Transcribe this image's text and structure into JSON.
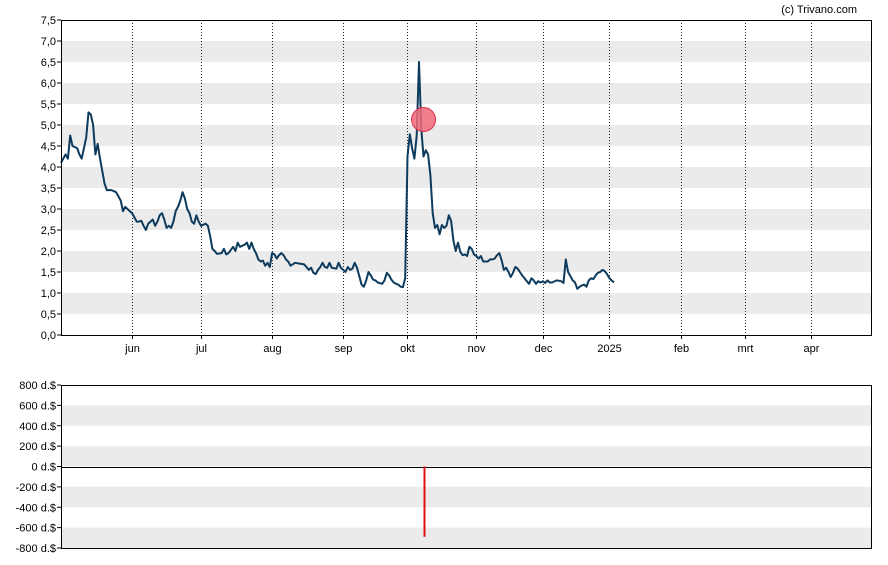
{
  "credit": "(c) Trivano.com",
  "colors": {
    "line": "#0d3b5e",
    "band": "#ebebeb",
    "marker_fill": "#f06a78",
    "marker_stroke": "#d8304a",
    "volume_bar": "#dd1111",
    "axis": "#000000"
  },
  "chart_data": [
    {
      "type": "line",
      "name": "price",
      "ylim": [
        0,
        7.5
      ],
      "yticks": [
        "0,0",
        "0,5",
        "1,0",
        "1,5",
        "2,0",
        "2,5",
        "3,0",
        "3,5",
        "4,0",
        "4,5",
        "5,0",
        "5,5",
        "6,0",
        "6,5",
        "7,0",
        "7,5"
      ],
      "grid": "alternating horizontal bands, dotted vertical month lines",
      "x_domain": [
        0,
        353
      ],
      "months": [
        {
          "label": "jun",
          "x": 31
        },
        {
          "label": "jul",
          "x": 61
        },
        {
          "label": "aug",
          "x": 92
        },
        {
          "label": "sep",
          "x": 123
        },
        {
          "label": "okt",
          "x": 151
        },
        {
          "label": "nov",
          "x": 181
        },
        {
          "label": "dec",
          "x": 210
        },
        {
          "label": "2025",
          "x": 239
        },
        {
          "label": "feb",
          "x": 270
        },
        {
          "label": "mrt",
          "x": 298
        },
        {
          "label": "apr",
          "x": 327
        }
      ],
      "series": [
        {
          "points": [
            [
              0,
              4.1
            ],
            [
              2,
              4.3
            ],
            [
              3,
              4.2
            ],
            [
              4,
              4.75
            ],
            [
              5,
              4.5
            ],
            [
              7,
              4.45
            ],
            [
              8,
              4.3
            ],
            [
              9,
              4.2
            ],
            [
              11,
              4.7
            ],
            [
              12,
              5.3
            ],
            [
              13,
              5.25
            ],
            [
              14,
              5.0
            ],
            [
              15,
              4.3
            ],
            [
              16,
              4.55
            ],
            [
              17,
              4.2
            ],
            [
              18,
              3.9
            ],
            [
              19,
              3.6
            ],
            [
              20,
              3.45
            ],
            [
              22,
              3.45
            ],
            [
              24,
              3.4
            ],
            [
              25,
              3.3
            ],
            [
              26,
              3.2
            ],
            [
              27,
              2.95
            ],
            [
              28,
              3.05
            ],
            [
              30,
              2.95
            ],
            [
              31,
              2.9
            ],
            [
              32,
              2.8
            ],
            [
              33,
              2.7
            ],
            [
              34,
              2.7
            ],
            [
              35,
              2.72
            ],
            [
              36,
              2.6
            ],
            [
              37,
              2.5
            ],
            [
              38,
              2.65
            ],
            [
              40,
              2.75
            ],
            [
              41,
              2.6
            ],
            [
              42,
              2.7
            ],
            [
              43,
              2.85
            ],
            [
              44,
              2.9
            ],
            [
              45,
              2.75
            ],
            [
              46,
              2.55
            ],
            [
              47,
              2.6
            ],
            [
              48,
              2.55
            ],
            [
              49,
              2.7
            ],
            [
              50,
              2.95
            ],
            [
              51,
              3.05
            ],
            [
              52,
              3.2
            ],
            [
              53,
              3.4
            ],
            [
              54,
              3.25
            ],
            [
              55,
              3.0
            ],
            [
              56,
              2.9
            ],
            [
              57,
              2.7
            ],
            [
              58,
              2.65
            ],
            [
              59,
              2.85
            ],
            [
              60,
              2.7
            ],
            [
              61,
              2.6
            ],
            [
              63,
              2.65
            ],
            [
              64,
              2.6
            ],
            [
              65,
              2.35
            ],
            [
              66,
              2.05
            ],
            [
              67,
              2.0
            ],
            [
              68,
              1.93
            ],
            [
              70,
              1.95
            ],
            [
              71,
              2.05
            ],
            [
              72,
              1.92
            ],
            [
              73,
              1.95
            ],
            [
              75,
              2.1
            ],
            [
              76,
              2.0
            ],
            [
              77,
              2.2
            ],
            [
              78,
              2.1
            ],
            [
              80,
              2.15
            ],
            [
              81,
              2.2
            ],
            [
              82,
              2.05
            ],
            [
              83,
              2.2
            ],
            [
              84,
              2.05
            ],
            [
              85,
              1.95
            ],
            [
              86,
              1.8
            ],
            [
              87,
              1.75
            ],
            [
              88,
              1.77
            ],
            [
              89,
              1.65
            ],
            [
              90,
              1.72
            ],
            [
              91,
              1.62
            ],
            [
              92,
              1.95
            ],
            [
              93,
              1.92
            ],
            [
              94,
              1.82
            ],
            [
              95,
              1.9
            ],
            [
              96,
              1.95
            ],
            [
              97,
              1.9
            ],
            [
              98,
              1.8
            ],
            [
              99,
              1.75
            ],
            [
              100,
              1.65
            ],
            [
              102,
              1.72
            ],
            [
              104,
              1.7
            ],
            [
              106,
              1.68
            ],
            [
              107,
              1.62
            ],
            [
              108,
              1.55
            ],
            [
              109,
              1.6
            ],
            [
              110,
              1.48
            ],
            [
              111,
              1.45
            ],
            [
              112,
              1.55
            ],
            [
              113,
              1.62
            ],
            [
              114,
              1.72
            ],
            [
              115,
              1.62
            ],
            [
              116,
              1.6
            ],
            [
              117,
              1.72
            ],
            [
              118,
              1.6
            ],
            [
              120,
              1.58
            ],
            [
              121,
              1.72
            ],
            [
              122,
              1.6
            ],
            [
              123,
              1.55
            ],
            [
              124,
              1.5
            ],
            [
              125,
              1.62
            ],
            [
              126,
              1.55
            ],
            [
              127,
              1.58
            ],
            [
              128,
              1.72
            ],
            [
              129,
              1.6
            ],
            [
              130,
              1.4
            ],
            [
              131,
              1.2
            ],
            [
              132,
              1.15
            ],
            [
              133,
              1.3
            ],
            [
              134,
              1.5
            ],
            [
              135,
              1.42
            ],
            [
              136,
              1.32
            ],
            [
              137,
              1.3
            ],
            [
              138,
              1.25
            ],
            [
              140,
              1.22
            ],
            [
              141,
              1.3
            ],
            [
              142,
              1.48
            ],
            [
              143,
              1.42
            ],
            [
              144,
              1.32
            ],
            [
              145,
              1.25
            ],
            [
              146,
              1.22
            ],
            [
              147,
              1.2
            ],
            [
              148,
              1.15
            ],
            [
              149,
              1.14
            ],
            [
              150,
              1.35
            ],
            [
              151,
              4.25
            ],
            [
              152,
              4.78
            ],
            [
              153,
              4.45
            ],
            [
              154,
              4.2
            ],
            [
              155,
              4.75
            ],
            [
              156,
              6.5
            ],
            [
              157,
              4.9
            ],
            [
              158,
              4.25
            ],
            [
              159,
              4.4
            ],
            [
              160,
              4.3
            ],
            [
              161,
              3.8
            ],
            [
              162,
              2.9
            ],
            [
              163,
              2.55
            ],
            [
              164,
              2.62
            ],
            [
              165,
              2.4
            ],
            [
              166,
              2.62
            ],
            [
              167,
              2.55
            ],
            [
              168,
              2.6
            ],
            [
              169,
              2.85
            ],
            [
              170,
              2.72
            ],
            [
              171,
              2.25
            ],
            [
              172,
              2.0
            ],
            [
              173,
              2.2
            ],
            [
              174,
              1.98
            ],
            [
              175,
              1.9
            ],
            [
              176,
              1.92
            ],
            [
              177,
              1.88
            ],
            [
              178,
              2.1
            ],
            [
              179,
              2.05
            ],
            [
              180,
              1.92
            ],
            [
              181,
              1.88
            ],
            [
              182,
              1.82
            ],
            [
              183,
              1.88
            ],
            [
              184,
              1.75
            ],
            [
              186,
              1.75
            ],
            [
              187,
              1.8
            ],
            [
              188,
              1.8
            ],
            [
              189,
              1.82
            ],
            [
              190,
              1.9
            ],
            [
              191,
              1.95
            ],
            [
              192,
              1.78
            ],
            [
              193,
              1.55
            ],
            [
              194,
              1.6
            ],
            [
              195,
              1.5
            ],
            [
              196,
              1.38
            ],
            [
              197,
              1.48
            ],
            [
              198,
              1.62
            ],
            [
              199,
              1.58
            ],
            [
              200,
              1.5
            ],
            [
              201,
              1.42
            ],
            [
              202,
              1.35
            ],
            [
              203,
              1.28
            ],
            [
              204,
              1.22
            ],
            [
              205,
              1.35
            ],
            [
              206,
              1.3
            ],
            [
              207,
              1.22
            ],
            [
              208,
              1.28
            ],
            [
              209,
              1.25
            ],
            [
              210,
              1.28
            ],
            [
              211,
              1.24
            ],
            [
              212,
              1.3
            ],
            [
              213,
              1.25
            ],
            [
              214,
              1.25
            ],
            [
              216,
              1.3
            ],
            [
              218,
              1.28
            ],
            [
              219,
              1.24
            ],
            [
              220,
              1.8
            ],
            [
              221,
              1.5
            ],
            [
              222,
              1.4
            ],
            [
              223,
              1.3
            ],
            [
              224,
              1.25
            ],
            [
              225,
              1.1
            ],
            [
              226,
              1.15
            ],
            [
              227,
              1.18
            ],
            [
              228,
              1.2
            ],
            [
              229,
              1.15
            ],
            [
              230,
              1.3
            ],
            [
              231,
              1.35
            ],
            [
              232,
              1.33
            ],
            [
              233,
              1.42
            ],
            [
              234,
              1.48
            ],
            [
              235,
              1.5
            ],
            [
              236,
              1.55
            ],
            [
              237,
              1.52
            ],
            [
              238,
              1.45
            ],
            [
              239,
              1.35
            ],
            [
              240,
              1.3
            ],
            [
              241,
              1.25
            ]
          ]
        }
      ],
      "marker": {
        "x": 158,
        "y": 5.13
      }
    },
    {
      "type": "bar",
      "name": "volume",
      "ylim": [
        -800,
        800
      ],
      "yticks": [
        "800 d.$",
        "600 d.$",
        "400 d.$",
        "200 d.$",
        "0 d.$",
        "-200 d.$",
        "-400 d.$",
        "-600 d.$",
        "-800 d.$"
      ],
      "bars": [
        {
          "x": 158,
          "value": -690
        }
      ]
    }
  ]
}
